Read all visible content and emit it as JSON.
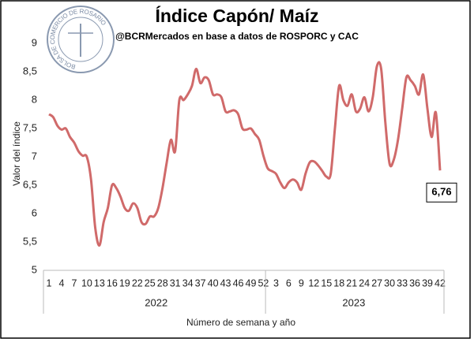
{
  "chart_data": {
    "type": "line",
    "title": "Índice Capón/ Maíz",
    "subtitle": "@BCRMercados  en base a datos de ROSPORC y CAC",
    "logo_text": "BOLSA DE COMERCIO DE ROSARIO",
    "y_label": "Valor del índice",
    "x_label": "Número de semana y año",
    "groups": [
      {
        "label": "2022",
        "categories": [
          1,
          null,
          null,
          4,
          null,
          null,
          7,
          null,
          null,
          10,
          null,
          null,
          13,
          null,
          null,
          16,
          null,
          null,
          19,
          null,
          null,
          22,
          null,
          null,
          25,
          null,
          null,
          28,
          null,
          null,
          31,
          null,
          null,
          34,
          null,
          null,
          37,
          null,
          null,
          40,
          null,
          null,
          43,
          null,
          null,
          46,
          null,
          null,
          49,
          null,
          null,
          52
        ]
      },
      {
        "label": "2023",
        "categories": [
          null,
          null,
          3,
          null,
          null,
          6,
          null,
          null,
          9,
          null,
          null,
          12,
          null,
          null,
          15,
          null,
          null,
          18,
          null,
          null,
          21,
          null,
          null,
          24,
          null,
          null,
          27,
          null,
          null,
          30,
          null,
          null,
          33,
          null,
          null,
          36,
          null,
          null,
          39,
          null,
          null,
          42
        ]
      }
    ],
    "series": [
      {
        "color": "#d06a6a",
        "values": [
          7.75,
          7.7,
          7.55,
          7.48,
          7.5,
          7.35,
          7.25,
          7.1,
          7.02,
          7.0,
          6.6,
          5.75,
          5.44,
          5.85,
          6.1,
          6.5,
          6.45,
          6.3,
          6.1,
          6.05,
          6.18,
          6.1,
          5.85,
          5.82,
          5.95,
          5.95,
          6.1,
          6.45,
          6.9,
          7.3,
          7.1,
          8.0,
          8.0,
          8.1,
          8.25,
          8.55,
          8.3,
          8.4,
          8.35,
          8.1,
          8.1,
          8.05,
          7.8,
          7.8,
          7.82,
          7.75,
          7.5,
          7.48,
          7.5,
          7.4,
          7.3,
          7.02,
          6.8,
          6.75,
          6.7,
          6.55,
          6.45,
          6.55,
          6.6,
          6.55,
          6.42,
          6.7,
          6.9,
          6.92,
          6.85,
          6.75,
          6.65,
          6.7,
          7.5,
          8.25,
          8.0,
          7.9,
          8.1,
          7.8,
          7.85,
          8.05,
          7.8,
          8.05,
          8.6,
          8.55,
          7.6,
          6.88,
          6.95,
          7.3,
          7.85,
          8.4,
          8.35,
          8.25,
          8.1,
          8.45,
          7.85,
          7.35,
          7.78,
          6.76
        ],
        "value_labels": [
          null,
          null,
          null,
          null,
          null,
          null,
          null,
          null,
          null,
          null,
          null,
          null,
          null,
          null,
          null,
          null,
          null,
          null,
          null,
          null,
          null,
          null,
          null,
          null,
          null,
          null,
          null,
          null,
          null,
          null,
          null,
          null,
          null,
          null,
          null,
          null,
          null,
          null,
          null,
          null,
          null,
          null,
          null,
          null,
          null,
          null,
          null,
          null,
          null,
          null,
          null,
          null,
          null,
          null,
          null,
          null,
          null,
          null,
          null,
          null,
          null,
          null,
          null,
          null,
          null,
          null,
          null,
          null,
          null,
          null,
          null,
          null,
          null,
          null,
          null,
          null,
          null,
          null,
          null,
          null,
          null,
          null,
          null,
          null,
          null,
          null,
          null,
          null,
          null,
          null,
          null,
          null,
          null,
          "6,76"
        ]
      }
    ],
    "ylim": [
      5,
      9
    ],
    "yticks": [
      5,
      {
        "value": 5.5,
        "label": "5,5"
      },
      6,
      {
        "value": 6.5,
        "label": "6,5"
      },
      7,
      {
        "value": 7.5,
        "label": "7,5"
      },
      8,
      {
        "value": 8.5,
        "label": "8,5"
      },
      9
    ],
    "grid": false
  }
}
